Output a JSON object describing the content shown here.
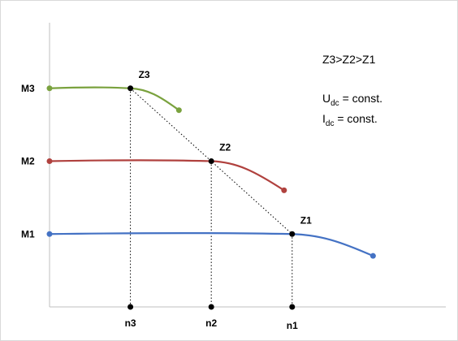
{
  "chart_data": {
    "type": "line",
    "title": "",
    "xlabel": "",
    "ylabel": "",
    "y_tick_labels": [
      "M1",
      "M2",
      "M3"
    ],
    "x_tick_labels": [
      "n3",
      "n2",
      "n1"
    ],
    "annotations": {
      "order": "Z3>Z2>Z1",
      "udc_main": "U",
      "udc_sub": "dc",
      "udc_rest": " = const.",
      "idc_main": "I",
      "idc_sub": "dc",
      "idc_rest": " = const."
    },
    "point_labels": [
      "Z3",
      "Z2",
      "Z1"
    ],
    "series": [
      {
        "name": "",
        "color": "#7aa23e",
        "points": [
          [
            0.0,
            3.0
          ],
          [
            1.0,
            3.0
          ],
          [
            1.6,
            2.7
          ]
        ]
      },
      {
        "name": "",
        "color": "#b0413e",
        "points": [
          [
            0.0,
            2.0
          ],
          [
            2.0,
            2.0
          ],
          [
            2.9,
            1.6
          ]
        ]
      },
      {
        "name": "",
        "color": "#4472c4",
        "points": [
          [
            0.0,
            1.0
          ],
          [
            3.0,
            1.0
          ],
          [
            4.0,
            0.7
          ]
        ]
      }
    ],
    "operating_points": [
      {
        "label": "Z3",
        "x": 1.0,
        "y": 3.0
      },
      {
        "label": "Z2",
        "x": 2.0,
        "y": 2.0
      },
      {
        "label": "Z1",
        "x": 3.0,
        "y": 1.0
      }
    ],
    "xlim": [
      0,
      4.9
    ],
    "ylim": [
      0,
      3.9
    ],
    "grid": false
  }
}
